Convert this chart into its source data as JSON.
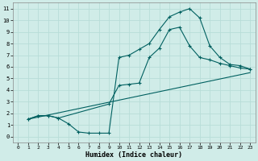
{
  "xlabel": "Humidex (Indice chaleur)",
  "bg_color": "#d0ece8",
  "grid_color": "#b8ddd8",
  "line_color": "#006060",
  "xlim": [
    -0.5,
    23.5
  ],
  "ylim": [
    -0.5,
    11.5
  ],
  "xticks": [
    0,
    1,
    2,
    3,
    4,
    5,
    6,
    7,
    8,
    9,
    10,
    11,
    12,
    13,
    14,
    15,
    16,
    17,
    18,
    19,
    20,
    21,
    22,
    23
  ],
  "yticks": [
    0,
    1,
    2,
    3,
    4,
    5,
    6,
    7,
    8,
    9,
    10,
    11
  ],
  "line1_x": [
    1,
    2,
    3,
    4,
    5,
    6,
    7,
    8,
    9,
    10,
    11,
    12,
    13,
    14,
    15,
    16,
    17,
    18,
    19,
    20,
    21,
    22,
    23
  ],
  "line1_y": [
    1.5,
    1.8,
    1.8,
    1.6,
    1.1,
    0.4,
    0.3,
    0.3,
    0.3,
    6.8,
    7.0,
    7.5,
    8.0,
    9.2,
    10.3,
    10.7,
    11.0,
    10.2,
    7.8,
    6.8,
    6.2,
    6.1,
    5.8
  ],
  "line2_x": [
    1,
    2,
    3,
    4,
    9,
    10,
    11,
    12,
    13,
    14,
    15,
    16,
    17,
    18,
    19,
    20,
    21,
    22,
    23
  ],
  "line2_y": [
    1.5,
    1.8,
    1.8,
    1.6,
    2.8,
    4.4,
    4.5,
    4.6,
    6.8,
    7.6,
    9.2,
    9.4,
    7.8,
    6.8,
    6.6,
    6.3,
    6.1,
    5.9,
    5.8
  ],
  "line3_x": [
    1,
    23
  ],
  "line3_y": [
    1.5,
    5.5
  ]
}
